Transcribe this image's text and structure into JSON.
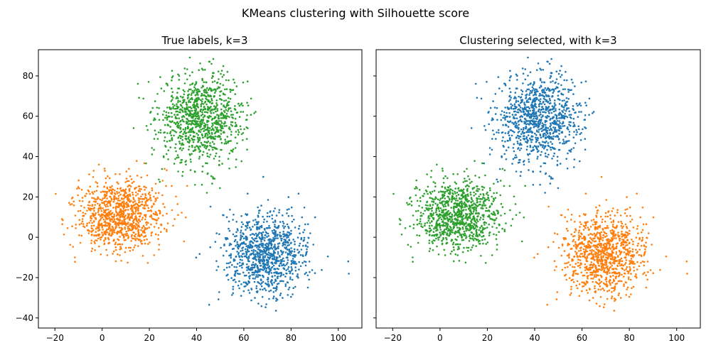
{
  "figure": {
    "suptitle": "KMeans clustering with Silhouette score"
  },
  "chart_data": [
    {
      "type": "scatter",
      "title": "True labels, k=3",
      "xlabel": "",
      "ylabel": "",
      "xlim": [
        -27,
        110
      ],
      "ylim": [
        -45,
        93
      ],
      "xticks": [
        -20,
        0,
        20,
        40,
        60,
        80,
        100
      ],
      "yticks": [
        -40,
        -20,
        0,
        20,
        40,
        60,
        80
      ],
      "grid": false,
      "series": [
        {
          "color": "#2ca02c",
          "center": [
            42,
            59
          ],
          "spread": [
            9,
            11
          ],
          "count": 1000
        },
        {
          "color": "#ff7f0e",
          "center": [
            8,
            11
          ],
          "spread": [
            9,
            9
          ],
          "count": 1000
        },
        {
          "color": "#1f77b4",
          "center": [
            69,
            -9
          ],
          "spread": [
            9,
            10
          ],
          "count": 1000
        }
      ]
    },
    {
      "type": "scatter",
      "title": "Clustering selected, with k=3",
      "xlabel": "",
      "ylabel": "",
      "xlim": [
        -27,
        110
      ],
      "ylim": [
        -45,
        93
      ],
      "xticks": [
        -20,
        0,
        20,
        40,
        60,
        80,
        100
      ],
      "yticks": [
        -40,
        -20,
        0,
        20,
        40,
        60,
        80
      ],
      "grid": false,
      "series": [
        {
          "color": "#1f77b4",
          "center": [
            42,
            59
          ],
          "spread": [
            9,
            11
          ],
          "count": 1000
        },
        {
          "color": "#2ca02c",
          "center": [
            8,
            11
          ],
          "spread": [
            9,
            9
          ],
          "count": 1000
        },
        {
          "color": "#ff7f0e",
          "center": [
            69,
            -9
          ],
          "spread": [
            9,
            10
          ],
          "count": 1000
        }
      ]
    }
  ]
}
